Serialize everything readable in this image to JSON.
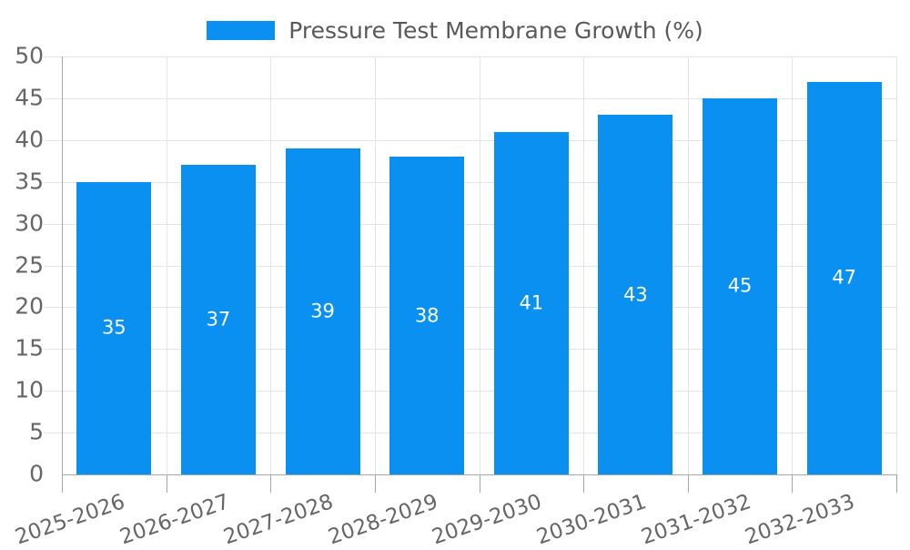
{
  "legend": {
    "label": "Pressure Test Membrane Growth (%)"
  },
  "chart_data": {
    "type": "bar",
    "title": "Pressure Test Membrane Growth (%)",
    "categories": [
      "2025-2026",
      "2026-2027",
      "2027-2028",
      "2028-2029",
      "2029-2030",
      "2030-2031",
      "2031-2032",
      "2032-2033"
    ],
    "values": [
      35,
      37,
      39,
      38,
      41,
      43,
      45,
      47
    ],
    "xlabel": "",
    "ylabel": "",
    "ylim": [
      0,
      50
    ],
    "ytick_step": 5,
    "yticks": [
      0,
      5,
      10,
      15,
      20,
      25,
      30,
      35,
      40,
      45,
      50
    ],
    "grid": "both",
    "legend_position": "top-center",
    "value_labels": "inside-center",
    "x_label_rotation_deg": -19
  },
  "colors": {
    "bar": "#0a90f0",
    "value_label": "#ffffff",
    "grid": "#e4e4e4",
    "axis": "#a6a6a6",
    "tick_label": "#666666",
    "legend_text": "#595959",
    "background": "#ffffff"
  }
}
